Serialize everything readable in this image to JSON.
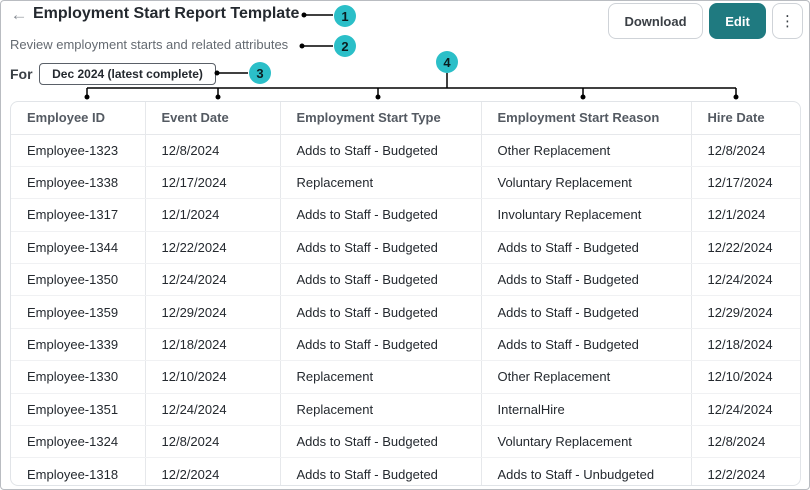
{
  "header": {
    "back_icon": "arrow-left-icon",
    "title": "Employment Start Report Template",
    "subtitle": "Review employment starts and related attributes",
    "download_label": "Download",
    "edit_label": "Edit",
    "more_icon": "vertical-ellipsis-icon"
  },
  "period": {
    "label": "For",
    "value": "Dec 2024 (latest complete)"
  },
  "callouts": [
    "1",
    "2",
    "3",
    "4"
  ],
  "colors": {
    "accent": "#1f7a80",
    "callout": "#2bbfc8"
  },
  "table": {
    "columns": [
      "Employee ID",
      "Event Date",
      "Employment Start Type",
      "Employment Start Reason",
      "Hire Date"
    ],
    "rows": [
      [
        "Employee-1323",
        "12/8/2024",
        "Adds to Staff - Budgeted",
        "Other Replacement",
        "12/8/2024"
      ],
      [
        "Employee-1338",
        "12/17/2024",
        "Replacement",
        "Voluntary Replacement",
        "12/17/2024"
      ],
      [
        "Employee-1317",
        "12/1/2024",
        "Adds to Staff - Budgeted",
        "Involuntary Replacement",
        "12/1/2024"
      ],
      [
        "Employee-1344",
        "12/22/2024",
        "Adds to Staff - Budgeted",
        "Adds to Staff - Budgeted",
        "12/22/2024"
      ],
      [
        "Employee-1350",
        "12/24/2024",
        "Adds to Staff - Budgeted",
        "Adds to Staff - Budgeted",
        "12/24/2024"
      ],
      [
        "Employee-1359",
        "12/29/2024",
        "Adds to Staff - Budgeted",
        "Adds to Staff - Budgeted",
        "12/29/2024"
      ],
      [
        "Employee-1339",
        "12/18/2024",
        "Adds to Staff - Budgeted",
        "Adds to Staff - Budgeted",
        "12/18/2024"
      ],
      [
        "Employee-1330",
        "12/10/2024",
        "Replacement",
        "Other Replacement",
        "12/10/2024"
      ],
      [
        "Employee-1351",
        "12/24/2024",
        "Replacement",
        "InternalHire",
        "12/24/2024"
      ],
      [
        "Employee-1324",
        "12/8/2024",
        "Adds to Staff - Budgeted",
        "Voluntary Replacement",
        "12/8/2024"
      ],
      [
        "Employee-1318",
        "12/2/2024",
        "Adds to Staff - Budgeted",
        "Adds to Staff - Unbudgeted",
        "12/2/2024"
      ]
    ]
  }
}
